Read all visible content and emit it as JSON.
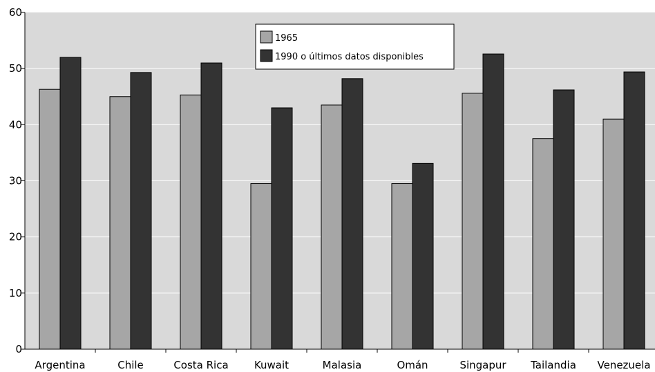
{
  "chart_data": {
    "type": "bar",
    "categories": [
      "Argentina",
      "Chile",
      "Costa Rica",
      "Kuwait",
      "Malasia",
      "Omán",
      "Singapur",
      "Tailandia",
      "Venezuela"
    ],
    "series": [
      {
        "name": "1965",
        "values": [
          46.3,
          45.0,
          45.3,
          29.5,
          43.5,
          29.5,
          45.6,
          37.5,
          41.0
        ],
        "color": "#a6a6a6"
      },
      {
        "name": "1990 o últimos datos disponibles",
        "values": [
          52.0,
          49.3,
          51.0,
          43.0,
          48.2,
          33.1,
          52.6,
          46.2,
          49.4
        ],
        "color": "#333333"
      }
    ],
    "title": "",
    "xlabel": "",
    "ylabel": "",
    "ylim": [
      0,
      60
    ],
    "yticks": [
      "0",
      "10",
      "20",
      "30",
      "40",
      "50",
      "60"
    ],
    "grid": true,
    "legend_position": "top-center",
    "plot_background": "#d9d9d9",
    "gridline_color": "#ffffff"
  }
}
